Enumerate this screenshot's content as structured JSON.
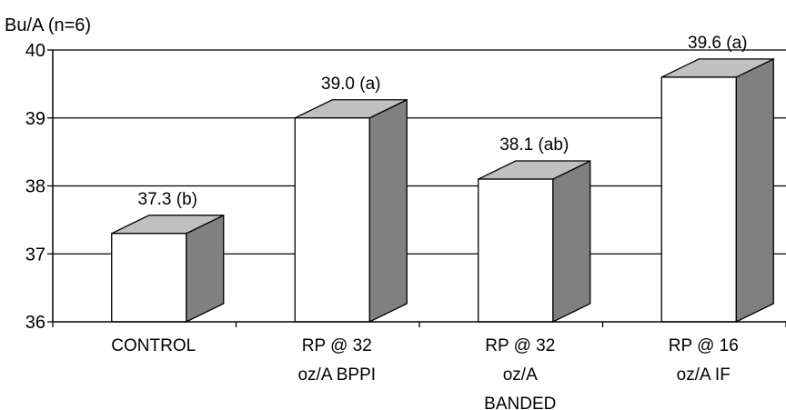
{
  "chart_data": {
    "type": "bar",
    "title": "",
    "ylabel": "Bu/A (n=6)",
    "xlabel": "",
    "ylim": [
      36,
      40
    ],
    "yticks": [
      "36",
      "37",
      "38",
      "39",
      "40"
    ],
    "grid": true,
    "style": "3d",
    "categories": [
      [
        "CONTROL"
      ],
      [
        "RP @ 32",
        "oz/A BPPI"
      ],
      [
        "RP @ 32",
        "oz/A",
        "BANDED"
      ],
      [
        "RP @ 16",
        "oz/A IF"
      ]
    ],
    "values": [
      37.3,
      39.0,
      38.1,
      39.6
    ],
    "data_labels": [
      "37.3 (b)",
      "39.0 (a)",
      "38.1 (ab)",
      "39.6 (a)"
    ],
    "colors": {
      "front": "#ffffff",
      "top": "#c0c0c0",
      "side": "#808080",
      "outline": "#000000"
    }
  }
}
